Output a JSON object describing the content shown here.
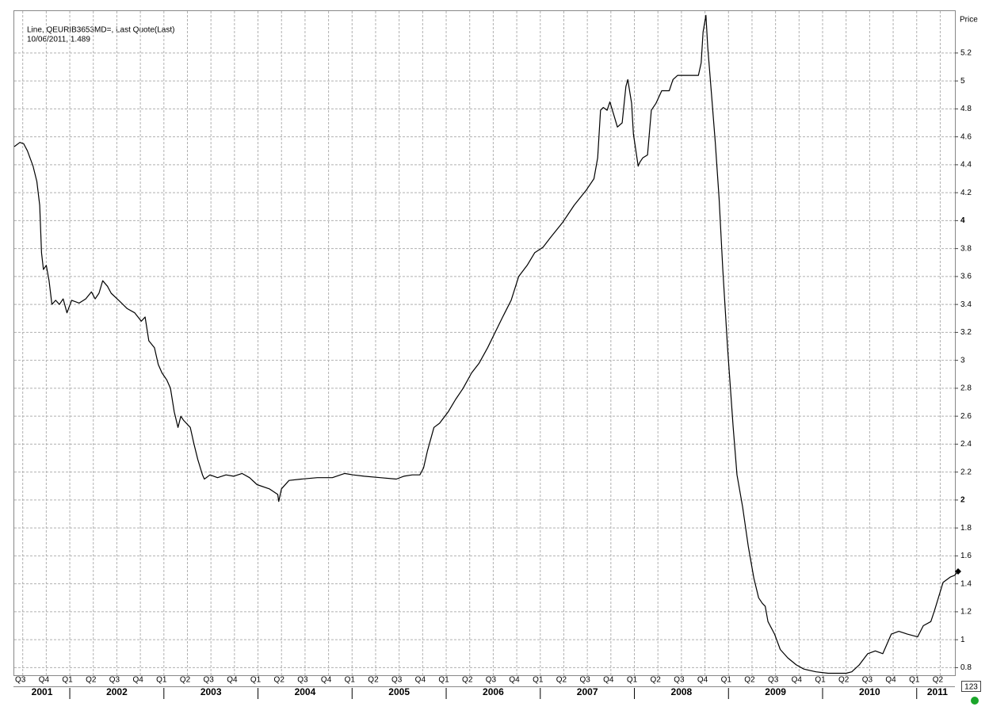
{
  "chart_data": {
    "type": "line",
    "annotation": [
      "Line, QEURIB3653MD=, Last Quote(Last)",
      "10/06/2011, 1.489"
    ],
    "y_axis_label": "Price",
    "badge": "123",
    "grid": true,
    "series": [
      {
        "color": "#000000",
        "x": [
          2001.41,
          2001.47,
          2001.51,
          2001.55,
          2001.61,
          2001.65,
          2001.68,
          2001.7,
          2001.72,
          2001.75,
          2001.78,
          2001.81,
          2001.85,
          2001.89,
          2001.93,
          2001.97,
          2002.02,
          2002.1,
          2002.17,
          2002.23,
          2002.27,
          2002.31,
          2002.35,
          2002.4,
          2002.44,
          2002.52,
          2002.61,
          2002.69,
          2002.76,
          2002.8,
          2002.84,
          2002.9,
          2002.94,
          2002.98,
          2003.03,
          2003.07,
          2003.11,
          2003.15,
          2003.18,
          2003.21,
          2003.28,
          2003.32,
          2003.36,
          2003.41,
          2003.43,
          2003.49,
          2003.57,
          2003.66,
          2003.74,
          2003.83,
          2003.91,
          2003.99,
          2004.12,
          2004.21,
          2004.22,
          2004.25,
          2004.33,
          2004.46,
          2004.63,
          2004.79,
          2004.92,
          2005.01,
          2005.13,
          2005.3,
          2005.47,
          2005.55,
          2005.64,
          2005.72,
          2005.76,
          2005.8,
          2005.87,
          2005.93,
          2006.02,
          2006.1,
          2006.18,
          2006.27,
          2006.35,
          2006.44,
          2006.52,
          2006.6,
          2006.69,
          2006.77,
          2006.86,
          2006.94,
          2007.03,
          2007.11,
          2007.24,
          2007.36,
          2007.49,
          2007.57,
          2007.61,
          2007.64,
          2007.67,
          2007.71,
          2007.74,
          2007.78,
          2007.82,
          2007.87,
          2007.91,
          2007.93,
          2007.97,
          2007.99,
          2008.04,
          2008.06,
          2008.09,
          2008.14,
          2008.18,
          2008.23,
          2008.29,
          2008.37,
          2008.41,
          2008.46,
          2008.58,
          2008.68,
          2008.71,
          2008.73,
          2008.76,
          2008.78,
          2008.82,
          2008.86,
          2008.9,
          2008.94,
          2008.99,
          2009.05,
          2009.09,
          2009.15,
          2009.21,
          2009.27,
          2009.32,
          2009.36,
          2009.39,
          2009.42,
          2009.49,
          2009.55,
          2009.63,
          2009.72,
          2009.8,
          2009.93,
          2010.06,
          2010.18,
          2010.25,
          2010.31,
          2010.39,
          2010.48,
          2010.56,
          2010.64,
          2010.73,
          2010.81,
          2010.9,
          2011.01,
          2011.07,
          2011.15,
          2011.19,
          2011.28,
          2011.36,
          2011.4,
          2011.44
        ],
        "values": [
          4.53,
          4.56,
          4.55,
          4.5,
          4.39,
          4.28,
          4.11,
          3.77,
          3.65,
          3.68,
          3.57,
          3.4,
          3.43,
          3.4,
          3.44,
          3.34,
          3.43,
          3.41,
          3.44,
          3.49,
          3.44,
          3.48,
          3.57,
          3.53,
          3.48,
          3.43,
          3.37,
          3.34,
          3.28,
          3.31,
          3.14,
          3.09,
          2.97,
          2.91,
          2.86,
          2.8,
          2.63,
          2.52,
          2.6,
          2.57,
          2.52,
          2.4,
          2.29,
          2.18,
          2.15,
          2.18,
          2.16,
          2.18,
          2.17,
          2.19,
          2.16,
          2.11,
          2.08,
          2.04,
          1.99,
          2.08,
          2.14,
          2.15,
          2.16,
          2.16,
          2.19,
          2.18,
          2.17,
          2.16,
          2.15,
          2.17,
          2.18,
          2.18,
          2.23,
          2.35,
          2.52,
          2.55,
          2.63,
          2.72,
          2.8,
          2.91,
          2.98,
          3.09,
          3.2,
          3.31,
          3.43,
          3.6,
          3.68,
          3.77,
          3.81,
          3.88,
          3.99,
          4.11,
          4.22,
          4.3,
          4.45,
          4.79,
          4.81,
          4.79,
          4.85,
          4.76,
          4.67,
          4.7,
          4.96,
          5.01,
          4.84,
          4.62,
          4.39,
          4.42,
          4.45,
          4.47,
          4.79,
          4.84,
          4.93,
          4.93,
          5.01,
          5.04,
          5.04,
          5.04,
          5.13,
          5.35,
          5.47,
          5.24,
          4.9,
          4.56,
          4.16,
          3.65,
          3.09,
          2.52,
          2.18,
          1.95,
          1.67,
          1.44,
          1.3,
          1.26,
          1.24,
          1.13,
          1.04,
          0.93,
          0.87,
          0.82,
          0.79,
          0.77,
          0.76,
          0.76,
          0.76,
          0.77,
          0.82,
          0.9,
          0.92,
          0.9,
          1.04,
          1.06,
          1.04,
          1.02,
          1.1,
          1.13,
          1.21,
          1.41,
          1.45,
          1.46,
          1.489
        ]
      }
    ],
    "xlim": [
      2001.41,
      2011.44
    ],
    "xticks": [
      {
        "value": 2001.5,
        "label": "Q3"
      },
      {
        "value": 2001.75,
        "label": "Q4"
      },
      {
        "value": 2002,
        "label": "Q1"
      },
      {
        "value": 2002.25,
        "label": "Q2"
      },
      {
        "value": 2002.5,
        "label": "Q3"
      },
      {
        "value": 2002.75,
        "label": "Q4"
      },
      {
        "value": 2003,
        "label": "Q1"
      },
      {
        "value": 2003.25,
        "label": "Q2"
      },
      {
        "value": 2003.5,
        "label": "Q3"
      },
      {
        "value": 2003.75,
        "label": "Q4"
      },
      {
        "value": 2004,
        "label": "Q1"
      },
      {
        "value": 2004.25,
        "label": "Q2"
      },
      {
        "value": 2004.5,
        "label": "Q3"
      },
      {
        "value": 2004.75,
        "label": "Q4"
      },
      {
        "value": 2005,
        "label": "Q1"
      },
      {
        "value": 2005.25,
        "label": "Q2"
      },
      {
        "value": 2005.5,
        "label": "Q3"
      },
      {
        "value": 2005.75,
        "label": "Q4"
      },
      {
        "value": 2006,
        "label": "Q1"
      },
      {
        "value": 2006.25,
        "label": "Q2"
      },
      {
        "value": 2006.5,
        "label": "Q3"
      },
      {
        "value": 2006.75,
        "label": "Q4"
      },
      {
        "value": 2007,
        "label": "Q1"
      },
      {
        "value": 2007.25,
        "label": "Q2"
      },
      {
        "value": 2007.5,
        "label": "Q3"
      },
      {
        "value": 2007.75,
        "label": "Q4"
      },
      {
        "value": 2008,
        "label": "Q1"
      },
      {
        "value": 2008.25,
        "label": "Q2"
      },
      {
        "value": 2008.5,
        "label": "Q3"
      },
      {
        "value": 2008.75,
        "label": "Q4"
      },
      {
        "value": 2009,
        "label": "Q1"
      },
      {
        "value": 2009.25,
        "label": "Q2"
      },
      {
        "value": 2009.5,
        "label": "Q3"
      },
      {
        "value": 2009.75,
        "label": "Q4"
      },
      {
        "value": 2010,
        "label": "Q1"
      },
      {
        "value": 2010.25,
        "label": "Q2"
      },
      {
        "value": 2010.5,
        "label": "Q3"
      },
      {
        "value": 2010.75,
        "label": "Q4"
      },
      {
        "value": 2011,
        "label": "Q1"
      },
      {
        "value": 2011.25,
        "label": "Q2"
      }
    ],
    "year_ticks": [
      2001,
      2002,
      2003,
      2004,
      2005,
      2006,
      2007,
      2008,
      2009,
      2010,
      2011
    ],
    "ylim": [
      0.74,
      5.5
    ],
    "yticks": [
      0.8,
      1,
      1.2,
      1.4,
      1.6,
      1.8,
      2,
      2.2,
      2.4,
      2.6,
      2.8,
      3,
      3.2,
      3.4,
      3.6,
      3.8,
      4,
      4.2,
      4.4,
      4.6,
      4.8,
      5,
      5.2
    ]
  }
}
